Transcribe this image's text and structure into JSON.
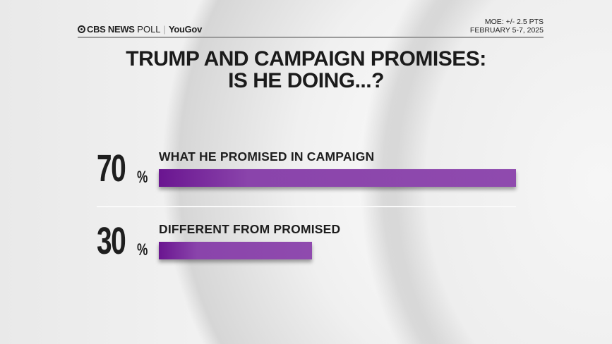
{
  "header": {
    "brand": "CBS NEWS",
    "brand_suffix": "POLL",
    "partner": "YouGov",
    "moe": "MOE: +/- 2.5 PTS",
    "dates": "FEBRUARY 5-7, 2025"
  },
  "chart_data": {
    "type": "bar",
    "orientation": "horizontal",
    "title": "TRUMP AND CAMPAIGN PROMISES: IS HE DOING...?",
    "title_line1": "TRUMP AND CAMPAIGN PROMISES:",
    "title_line2": "IS HE DOING...?",
    "categories": [
      "WHAT HE PROMISED IN CAMPAIGN",
      "DIFFERENT FROM PROMISED"
    ],
    "values": [
      70,
      30
    ],
    "value_labels": [
      "70",
      "30"
    ],
    "unit": "%",
    "xlim": [
      0,
      100
    ],
    "bar_color": "#8a44ab"
  }
}
